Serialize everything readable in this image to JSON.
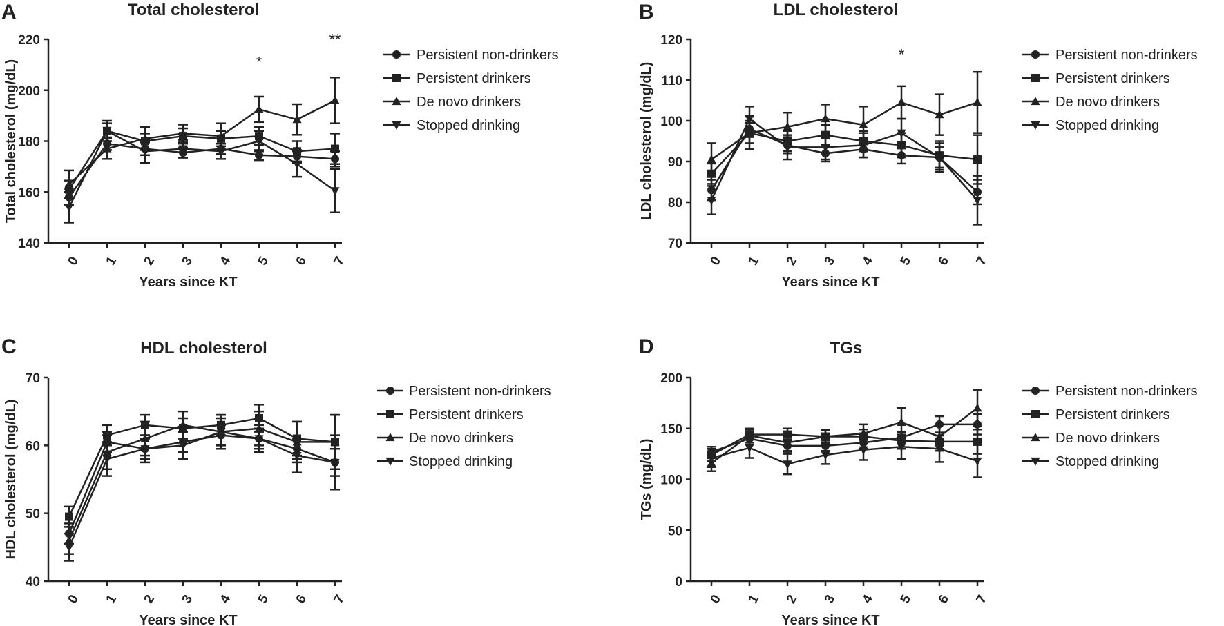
{
  "figure": {
    "legend": [
      "Persistent non-drinkers",
      "Persistent drinkers",
      "De novo drinkers",
      "Stopped drinking"
    ],
    "marker_names": [
      "circle",
      "square",
      "triangle-up",
      "triangle-down"
    ],
    "ink_color": "#222222"
  },
  "chart_data": [
    {
      "panel_label": "A",
      "type": "line",
      "title": "Total cholesterol",
      "xlabel": "Years since KT",
      "ylabel": "Total cholesterol (mg/dL)",
      "categories": [
        "0",
        "1",
        "2",
        "3",
        "4",
        "5",
        "6",
        "7"
      ],
      "ylim": [
        140,
        220
      ],
      "yticks": [
        140,
        160,
        180,
        200,
        220
      ],
      "grid": false,
      "legend_position": "right",
      "series": [
        {
          "name": "Persistent non-drinkers",
          "marker": "circle",
          "values": [
            158,
            179,
            177,
            175.5,
            177,
            174.5,
            174,
            173
          ],
          "errors": [
            3,
            2.5,
            2.5,
            2,
            2,
            2,
            2.5,
            3
          ]
        },
        {
          "name": "Persistent drinkers",
          "marker": "square",
          "values": [
            161,
            184,
            180,
            182,
            181,
            182,
            176,
            177
          ],
          "errors": [
            3.5,
            3,
            3,
            3,
            3,
            3.5,
            4,
            6
          ]
        },
        {
          "name": "De novo drinkers",
          "marker": "triangle-up",
          "values": [
            163,
            177,
            181,
            183,
            182,
            192.5,
            188.5,
            196
          ],
          "errors": [
            5.5,
            4,
            4.5,
            3.5,
            5,
            5,
            6,
            9
          ]
        },
        {
          "name": "Stopped drinking",
          "marker": "triangle-down",
          "values": [
            154,
            184,
            176,
            177,
            176,
            180,
            171,
            160.5
          ],
          "errors": [
            6,
            4,
            4.5,
            3.5,
            3,
            4,
            5,
            8.5
          ]
        }
      ],
      "annotations": [
        {
          "x": "5",
          "y": 209,
          "text": "*"
        },
        {
          "x": "7",
          "y": 218,
          "text": "**"
        }
      ]
    },
    {
      "panel_label": "B",
      "type": "line",
      "title": "LDL cholesterol",
      "xlabel": "Years since KT",
      "ylabel": "LDL cholesterol (mg/dL)",
      "categories": [
        "0",
        "1",
        "2",
        "3",
        "4",
        "5",
        "6",
        "7"
      ],
      "ylim": [
        70,
        120
      ],
      "yticks": [
        70,
        80,
        90,
        100,
        110,
        120
      ],
      "grid": false,
      "legend_position": "right",
      "series": [
        {
          "name": "Persistent non-drinkers",
          "marker": "circle",
          "values": [
            83,
            98,
            94,
            92,
            93,
            91.5,
            91,
            82.5
          ],
          "errors": [
            2.5,
            2,
            2,
            2,
            2,
            2,
            2.5,
            3
          ]
        },
        {
          "name": "Persistent drinkers",
          "marker": "square",
          "values": [
            87,
            97,
            95,
            96.5,
            95,
            94,
            91.5,
            90.5
          ],
          "errors": [
            2.5,
            2.5,
            2.5,
            2.5,
            2.5,
            3,
            3.5,
            6
          ]
        },
        {
          "name": "De novo drinkers",
          "marker": "triangle-up",
          "values": [
            90.5,
            97,
            98.5,
            100.5,
            99,
            104.5,
            101.5,
            104.5
          ],
          "errors": [
            4,
            4,
            3.5,
            3.5,
            4.5,
            4,
            5,
            7.5
          ]
        },
        {
          "name": "Stopped drinking",
          "marker": "triangle-down",
          "values": [
            80.5,
            100.5,
            93.5,
            93.5,
            94,
            97,
            91,
            80.5
          ],
          "errors": [
            3.5,
            3,
            3,
            3,
            3,
            3.5,
            3.5,
            6
          ]
        }
      ],
      "annotations": [
        {
          "x": "5",
          "y": 115,
          "text": "*"
        }
      ]
    },
    {
      "panel_label": "C",
      "type": "line",
      "title": "HDL cholesterol",
      "xlabel": "Years since KT",
      "ylabel": "HDL cholesterol (mg/dL)",
      "categories": [
        "0",
        "1",
        "2",
        "3",
        "4",
        "5",
        "6",
        "7"
      ],
      "ylim": [
        40,
        70
      ],
      "yticks": [
        40,
        50,
        60,
        70
      ],
      "grid": false,
      "legend_position": "right",
      "series": [
        {
          "name": "Persistent non-drinkers",
          "marker": "circle",
          "values": [
            47,
            60.5,
            59.5,
            60.5,
            61.5,
            61,
            59.5,
            57.5
          ],
          "errors": [
            1.5,
            1.5,
            1.5,
            1.5,
            1.5,
            1.5,
            1.5,
            2
          ]
        },
        {
          "name": "Persistent drinkers",
          "marker": "square",
          "values": [
            49.5,
            61.5,
            63,
            62.5,
            63,
            64,
            61,
            60.5
          ],
          "errors": [
            1.5,
            1.5,
            1.5,
            1.5,
            1.5,
            2,
            2.5,
            4
          ]
        },
        {
          "name": "De novo drinkers",
          "marker": "triangle-up",
          "values": [
            46,
            59,
            61,
            63,
            62,
            62.5,
            60.5,
            60.5
          ],
          "errors": [
            2,
            2.5,
            2.5,
            2,
            2.5,
            2.5,
            3,
            4
          ]
        },
        {
          "name": "Stopped drinking",
          "marker": "triangle-down",
          "values": [
            45,
            58,
            59.5,
            60,
            62,
            61,
            58.5,
            57.5
          ],
          "errors": [
            2,
            2.5,
            2,
            2,
            2,
            2,
            2.5,
            4
          ]
        }
      ],
      "annotations": []
    },
    {
      "panel_label": "D",
      "type": "line",
      "title": "TGs",
      "xlabel": "Years since KT",
      "ylabel": "TGs (mg/dL)",
      "categories": [
        "0",
        "1",
        "2",
        "3",
        "4",
        "5",
        "6",
        "7"
      ],
      "ylim": [
        0,
        200
      ],
      "yticks": [
        0,
        50,
        100,
        150,
        200
      ],
      "grid": false,
      "legend_position": "right",
      "series": [
        {
          "name": "Persistent non-drinkers",
          "marker": "circle",
          "values": [
            127,
            140,
            133,
            133,
            136,
            141,
            154,
            154
          ],
          "errors": [
            5,
            6,
            6,
            5,
            6,
            6,
            8,
            10
          ]
        },
        {
          "name": "Persistent drinkers",
          "marker": "square",
          "values": [
            124,
            144,
            144,
            142,
            142,
            138,
            137,
            137
          ],
          "errors": [
            6,
            5,
            6,
            6,
            7,
            8,
            9,
            12
          ]
        },
        {
          "name": "De novo drinkers",
          "marker": "triangle-up",
          "values": [
            116,
            143,
            136,
            142,
            145,
            156,
            142,
            170
          ],
          "errors": [
            8,
            7,
            8,
            7,
            9,
            14,
            12,
            18
          ]
        },
        {
          "name": "Stopped drinking",
          "marker": "triangle-down",
          "values": [
            121,
            131,
            115,
            124,
            129,
            132,
            130,
            118
          ],
          "errors": [
            9,
            10,
            10,
            9,
            10,
            12,
            13,
            16
          ]
        }
      ],
      "annotations": []
    }
  ]
}
